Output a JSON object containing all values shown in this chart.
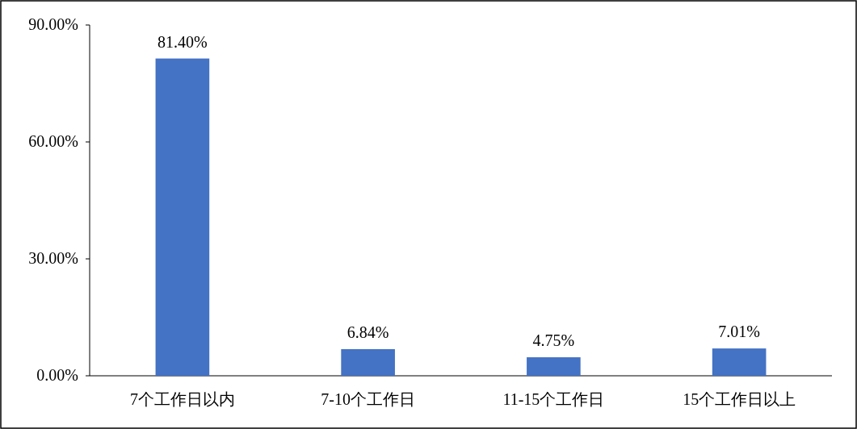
{
  "chart_data": {
    "type": "bar",
    "categories": [
      "7个工作日以内",
      "7-10个工作日",
      "11-15个工作日",
      "15个工作日以上"
    ],
    "values": [
      81.4,
      6.84,
      4.75,
      7.01
    ],
    "value_labels": [
      "81.40%",
      "6.84%",
      "4.75%",
      "7.01%"
    ],
    "color": "#4472c4",
    "ylim": [
      0,
      90
    ],
    "yticks": [
      {
        "value": 0,
        "label": "0.00%"
      },
      {
        "value": 30,
        "label": "30.00%"
      },
      {
        "value": 60,
        "label": "60.00%"
      },
      {
        "value": 90,
        "label": "90.00%"
      }
    ],
    "grid": false
  }
}
